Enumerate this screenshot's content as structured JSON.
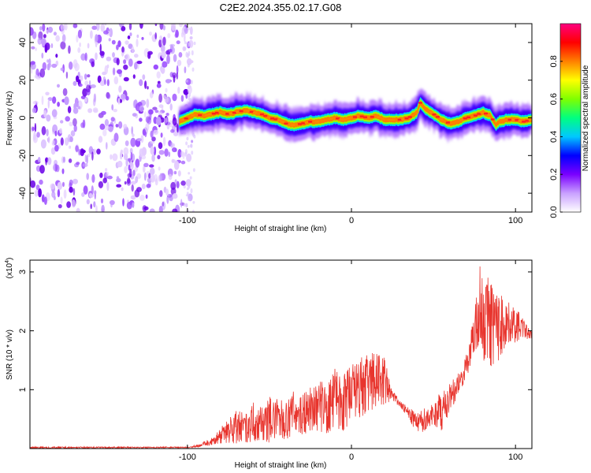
{
  "figure": {
    "title": "C2E2.2024.355.02.17.G08"
  },
  "chart_data": [
    {
      "type": "heatmap",
      "xlabel": "Height of straight line (km)",
      "ylabel": "Frequency (Hz)",
      "xlim": [
        -196,
        110
      ],
      "ylim": [
        -50,
        50
      ],
      "xticks": [
        -100,
        0,
        100
      ],
      "xtick_labels": [
        "-100",
        "0",
        "100"
      ],
      "yticks": [
        -40,
        -20,
        0,
        20,
        40
      ],
      "ytick_labels": [
        "-40",
        "-20",
        "0",
        "20",
        "40"
      ],
      "colorbar": {
        "label": "Normalized spectral amplitude",
        "range": [
          0,
          1
        ],
        "ticks": [
          0,
          0.2,
          0.4,
          0.6,
          0.8
        ],
        "tick_labels": [
          "0.0",
          "0.2",
          "0.4",
          "0.6",
          "0.8"
        ],
        "colors": [
          "#ffffff",
          "#c9a0ff",
          "#7a00ff",
          "#0000ff",
          "#00c8ff",
          "#00ff80",
          "#7fff00",
          "#ffff00",
          "#ff8000",
          "#ff0000",
          "#ff0080"
        ]
      },
      "noise_region_x": [
        -196,
        -100
      ],
      "ridge": {
        "x": [
          -105,
          -100,
          -95,
          -90,
          -85,
          -80,
          -75,
          -70,
          -65,
          -60,
          -55,
          -50,
          -45,
          -40,
          -35,
          -30,
          -25,
          -20,
          -15,
          -10,
          -5,
          0,
          5,
          10,
          15,
          20,
          25,
          30,
          35,
          40,
          42,
          45,
          50,
          55,
          60,
          65,
          70,
          75,
          80,
          85,
          88,
          90,
          95,
          100,
          105,
          110
        ],
        "frequency": [
          -2,
          0,
          2,
          1,
          2,
          3,
          2,
          3,
          4,
          3,
          2,
          0,
          -1,
          -3,
          -4,
          -3,
          -2,
          -2,
          -1,
          0,
          -1,
          0,
          1,
          0,
          1,
          -1,
          -1,
          -1,
          0,
          3,
          8,
          5,
          2,
          -1,
          -3,
          -2,
          0,
          1,
          3,
          1,
          -4,
          -2,
          -1,
          -1,
          -2,
          -1
        ]
      }
    },
    {
      "type": "line",
      "xlabel": "Height of straight line (km)",
      "ylabel": "SNR (10 * v/v)",
      "y_multiplier_label": "(x10",
      "y_multiplier_exp": "4",
      "y_multiplier_close": ")",
      "xlim": [
        -196,
        110
      ],
      "ylim": [
        0,
        3.2
      ],
      "xticks": [
        -100,
        0,
        100
      ],
      "xtick_labels": [
        "-100",
        "0",
        "100"
      ],
      "yticks": [
        1,
        2,
        3
      ],
      "ytick_labels": [
        "1",
        "2",
        "3"
      ],
      "series": [
        {
          "color": "#e8352e",
          "envelope_x": [
            -196,
            -120,
            -100,
            -92,
            -88,
            -85,
            -80,
            -75,
            -70,
            -65,
            -60,
            -55,
            -50,
            -45,
            -40,
            -35,
            -30,
            -25,
            -20,
            -15,
            -10,
            -5,
            0,
            5,
            10,
            15,
            20,
            25,
            30,
            35,
            40,
            45,
            50,
            55,
            60,
            65,
            70,
            75,
            78,
            80,
            85,
            90,
            95,
            100,
            105,
            110
          ],
          "envelope_low": [
            0.0,
            0.01,
            0.01,
            0.03,
            0.05,
            0.05,
            0.08,
            0.1,
            0.08,
            0.1,
            0.12,
            0.15,
            0.1,
            0.2,
            0.15,
            0.25,
            0.2,
            0.3,
            0.3,
            0.25,
            0.35,
            0.3,
            0.4,
            0.5,
            0.6,
            0.7,
            0.75,
            0.8,
            0.7,
            0.5,
            0.25,
            0.3,
            0.4,
            0.3,
            0.6,
            0.9,
            1.2,
            1.6,
            1.8,
            1.5,
            1.4,
            1.5,
            1.8,
            1.8,
            1.9,
            1.8
          ],
          "envelope_high": [
            0.03,
            0.03,
            0.03,
            0.08,
            0.15,
            0.2,
            0.35,
            0.5,
            0.65,
            0.6,
            0.8,
            0.75,
            0.9,
            0.85,
            0.8,
            1.0,
            0.95,
            1.05,
            1.2,
            1.05,
            1.4,
            1.25,
            1.45,
            1.55,
            1.6,
            1.7,
            1.55,
            1.0,
            0.8,
            0.7,
            0.6,
            0.7,
            0.8,
            1.0,
            1.1,
            1.3,
            1.6,
            2.3,
            3.2,
            3.0,
            2.9,
            2.7,
            2.5,
            2.4,
            2.2,
            2.0
          ]
        }
      ]
    }
  ]
}
